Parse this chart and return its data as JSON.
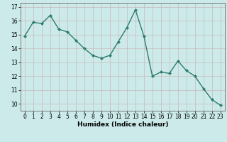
{
  "x": [
    0,
    1,
    2,
    3,
    4,
    5,
    6,
    7,
    8,
    9,
    10,
    11,
    12,
    13,
    14,
    15,
    16,
    17,
    18,
    19,
    20,
    21,
    22,
    23
  ],
  "y": [
    14.9,
    15.9,
    15.8,
    16.4,
    15.4,
    15.2,
    14.6,
    14.0,
    13.5,
    13.3,
    13.5,
    14.5,
    15.5,
    16.8,
    14.9,
    12.0,
    12.3,
    12.2,
    13.1,
    12.4,
    12.0,
    11.1,
    10.3,
    9.9
  ],
  "line_color": "#2e7d6e",
  "marker": "D",
  "marker_size": 2,
  "bg_color": "#cceaea",
  "grid_color": "#c8b8b8",
  "xlabel": "Humidex (Indice chaleur)",
  "ylim": [
    9.5,
    17.3
  ],
  "xlim": [
    -0.5,
    23.5
  ],
  "yticks": [
    10,
    11,
    12,
    13,
    14,
    15,
    16,
    17
  ],
  "xticks": [
    0,
    1,
    2,
    3,
    4,
    5,
    6,
    7,
    8,
    9,
    10,
    11,
    12,
    13,
    14,
    15,
    16,
    17,
    18,
    19,
    20,
    21,
    22,
    23
  ],
  "axis_fontsize": 5.5,
  "label_fontsize": 6.5,
  "linewidth": 1.0
}
